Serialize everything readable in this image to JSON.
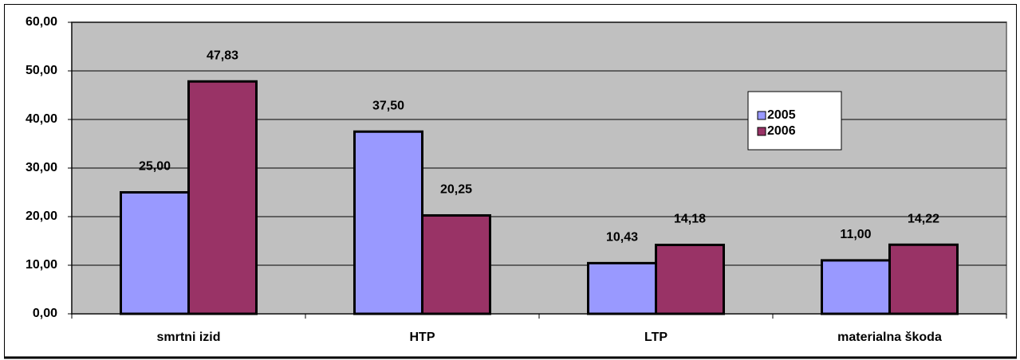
{
  "chart_data": {
    "type": "bar",
    "categories": [
      "smrtni izid",
      "HTP",
      "LTP",
      "materialna škoda"
    ],
    "series": [
      {
        "name": "2005",
        "color": "#9999ff",
        "values": [
          25.0,
          37.5,
          10.43,
          11.0
        ],
        "value_labels": [
          "25,00",
          "37,50",
          "10,43",
          "11,00"
        ]
      },
      {
        "name": "2006",
        "color": "#993366",
        "values": [
          47.83,
          20.25,
          14.18,
          14.22
        ],
        "value_labels": [
          "47,83",
          "20,25",
          "14,18",
          "14,22"
        ]
      }
    ],
    "ylim": [
      0,
      60
    ],
    "yticks": [
      {
        "value": 0,
        "label": "0,00"
      },
      {
        "value": 10,
        "label": "10,00"
      },
      {
        "value": 20,
        "label": "20,00"
      },
      {
        "value": 30,
        "label": "30,00"
      },
      {
        "value": 40,
        "label": "40,00"
      },
      {
        "value": 50,
        "label": "50,00"
      },
      {
        "value": 60,
        "label": "60,00"
      }
    ],
    "grid": true,
    "plot_background": "#c0c0c0",
    "legend": "right"
  }
}
